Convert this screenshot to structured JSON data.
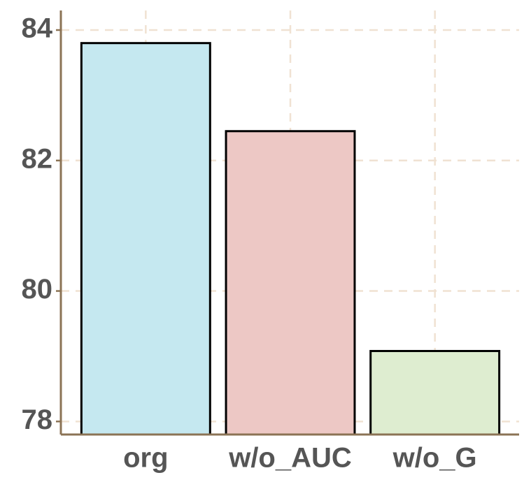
{
  "chart_data": {
    "type": "bar",
    "categories": [
      "org",
      "w/o_AUC",
      "w/o_G"
    ],
    "values": [
      83.8,
      82.45,
      79.08
    ],
    "colors": [
      "#c5e8f0",
      "#edc8c5",
      "#deedd0"
    ],
    "ylim": [
      77.8,
      84.3
    ],
    "yticks": [
      78,
      80,
      82,
      84
    ],
    "grid": true
  }
}
